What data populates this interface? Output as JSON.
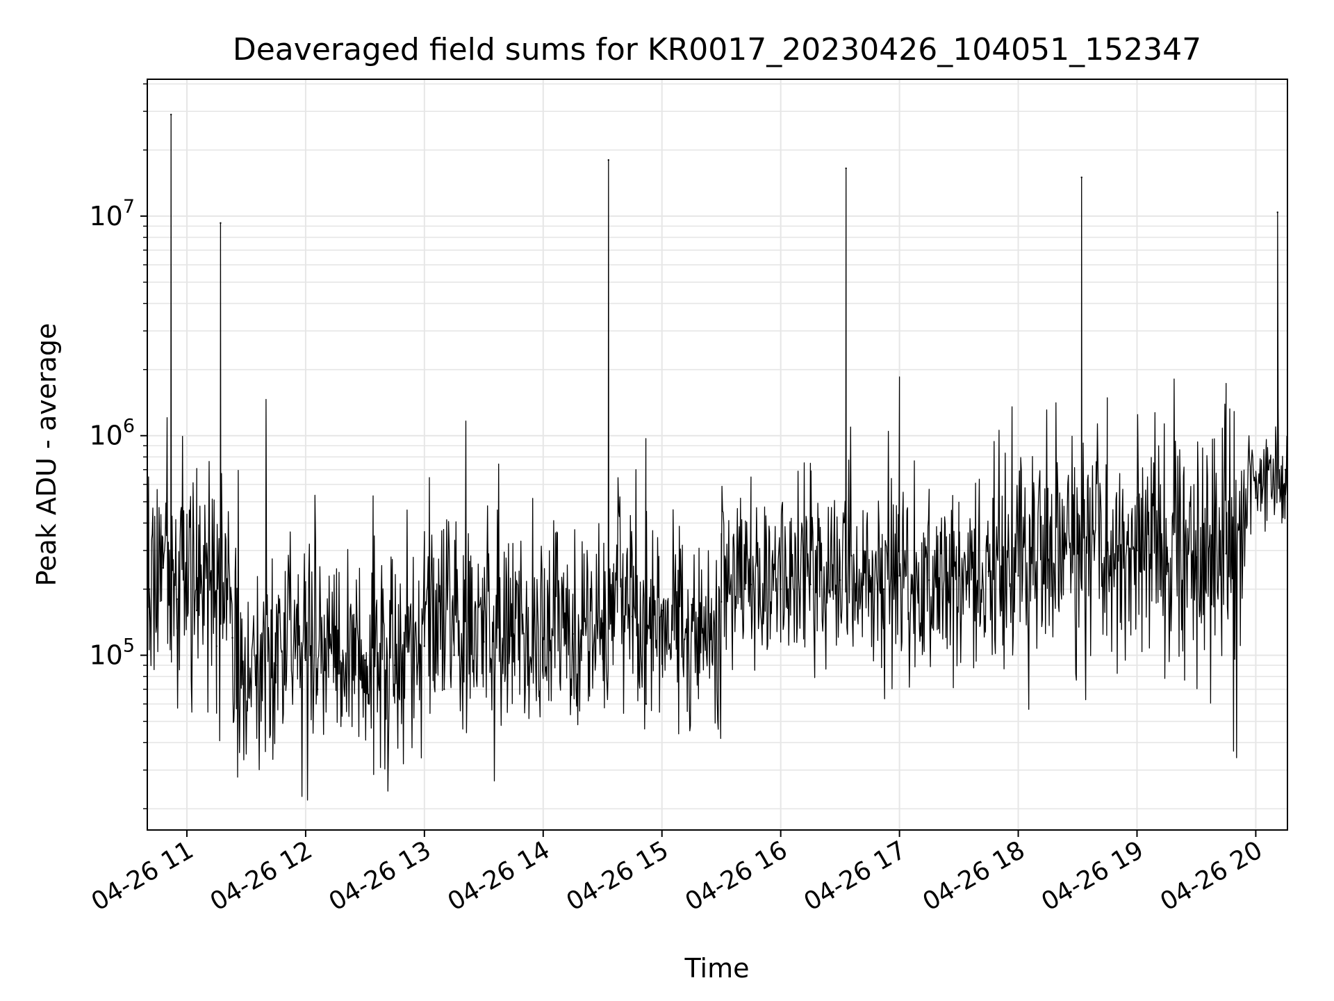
{
  "chart_data": {
    "type": "line",
    "title": "Deaveraged field sums for KR0017_20230426_104051_152347",
    "xlabel": "Time",
    "ylabel": "Peak ADU - average",
    "xscale": "time",
    "yscale": "log",
    "xlim": [
      "2023-04-26 10:40",
      "2023-04-26 20:16"
    ],
    "ylim": [
      16000,
      42000000
    ],
    "grid": true,
    "legend": "none",
    "line_color": "#000000",
    "grid_color": "#e6e6e6",
    "x_ticks": [
      {
        "t": "2023-04-26 11:00",
        "label": "04-26 11"
      },
      {
        "t": "2023-04-26 12:00",
        "label": "04-26 12"
      },
      {
        "t": "2023-04-26 13:00",
        "label": "04-26 13"
      },
      {
        "t": "2023-04-26 14:00",
        "label": "04-26 14"
      },
      {
        "t": "2023-04-26 15:00",
        "label": "04-26 15"
      },
      {
        "t": "2023-04-26 16:00",
        "label": "04-26 16"
      },
      {
        "t": "2023-04-26 17:00",
        "label": "04-26 17"
      },
      {
        "t": "2023-04-26 18:00",
        "label": "04-26 18"
      },
      {
        "t": "2023-04-26 19:00",
        "label": "04-26 19"
      },
      {
        "t": "2023-04-26 20:00",
        "label": "04-26 20"
      }
    ],
    "y_ticks": [
      {
        "value": 100000,
        "base": "10",
        "exp": "5"
      },
      {
        "value": 1000000,
        "base": "10",
        "exp": "6"
      },
      {
        "value": 10000000,
        "base": "10",
        "exp": "7"
      }
    ],
    "x": [
      "2023-04-26 10:41",
      "2023-04-26 10:48",
      "2023-04-26 10:52",
      "2023-04-26 10:55",
      "2023-04-26 11:05",
      "2023-04-26 11:15",
      "2023-04-26 11:17",
      "2023-04-26 11:23",
      "2023-04-26 11:35",
      "2023-04-26 11:45",
      "2023-04-26 12:00",
      "2023-04-26 12:06",
      "2023-04-26 12:15",
      "2023-04-26 12:30",
      "2023-04-26 12:32",
      "2023-04-26 12:45",
      "2023-04-26 13:00",
      "2023-04-26 13:10",
      "2023-04-26 13:15",
      "2023-04-26 13:30",
      "2023-04-26 13:45",
      "2023-04-26 14:00",
      "2023-04-26 14:15",
      "2023-04-26 14:30",
      "2023-04-26 14:33",
      "2023-04-26 14:45",
      "2023-04-26 14:52",
      "2023-04-26 15:00",
      "2023-04-26 15:15",
      "2023-04-26 15:30",
      "2023-04-26 15:42",
      "2023-04-26 15:45",
      "2023-04-26 16:00",
      "2023-04-26 16:15",
      "2023-04-26 16:30",
      "2023-04-26 16:33",
      "2023-04-26 16:45",
      "2023-04-26 16:52",
      "2023-04-26 17:00",
      "2023-04-26 17:15",
      "2023-04-26 17:30",
      "2023-04-26 17:45",
      "2023-04-26 18:00",
      "2023-04-26 18:15",
      "2023-04-26 18:30",
      "2023-04-26 18:32",
      "2023-04-26 18:45",
      "2023-04-26 19:00",
      "2023-04-26 19:15",
      "2023-04-26 19:30",
      "2023-04-26 19:45",
      "2023-04-26 20:00",
      "2023-04-26 20:11",
      "2023-04-26 20:15"
    ],
    "series": [
      {
        "values": [
          200000,
          250000,
          29000000,
          180000,
          160000,
          110000,
          9300000,
          120000,
          100000,
          90000,
          95000,
          70000,
          100000,
          95000,
          60000,
          90000,
          110000,
          70000,
          100000,
          115000,
          125000,
          120000,
          125000,
          140000,
          18000000,
          150000,
          60000,
          160000,
          170000,
          175000,
          200000,
          210000,
          200000,
          210000,
          220000,
          16500000,
          230000,
          200000,
          230000,
          220000,
          230000,
          240000,
          230000,
          270000,
          290000,
          15000000,
          300000,
          300000,
          260000,
          280000,
          290000,
          520000,
          10400000,
          700000
        ]
      }
    ],
    "noise_band": {
      "segments": [
        {
          "from": "2023-04-26 10:40",
          "to": "2023-04-26 11:25",
          "median": 200000,
          "spread_decades": 0.28
        },
        {
          "from": "2023-04-26 11:25",
          "to": "2023-04-26 13:00",
          "median": 95000,
          "spread_decades": 0.25
        },
        {
          "from": "2023-04-26 13:00",
          "to": "2023-04-26 15:30",
          "median": 135000,
          "spread_decades": 0.24
        },
        {
          "from": "2023-04-26 15:30",
          "to": "2023-04-26 18:00",
          "median": 220000,
          "spread_decades": 0.22
        },
        {
          "from": "2023-04-26 18:00",
          "to": "2023-04-26 19:55",
          "median": 290000,
          "spread_decades": 0.3
        },
        {
          "from": "2023-04-26 19:55",
          "to": "2023-04-26 20:16",
          "median": 650000,
          "spread_decades": 0.12
        }
      ]
    }
  }
}
